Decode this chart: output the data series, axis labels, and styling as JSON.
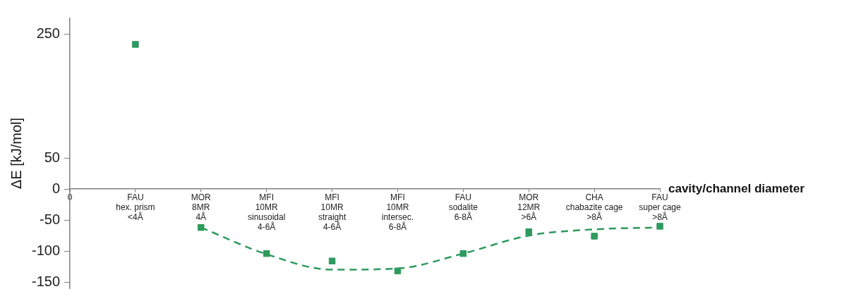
{
  "chart_data": {
    "type": "scatter",
    "ylabel": "ΔE [kJ/mol]",
    "xlabel": "cavity/channel diameter",
    "categories": [
      "0",
      "FAU\nhex. prism\n<4Å",
      "MOR\n8MR\n4Å",
      "MFI\n10MR\nsinusoidal\n4-6Å",
      "MFI\n10MR\nstraight\n4-6Å",
      "MFI\n10MR\nintersec.\n6-8Å",
      "FAU\nsodalite\n6-8Å",
      "MOR\n12MR\n>6Å",
      "CHA\nchabazite cage\n>8Å",
      "FAU\nsuper cage\n>8Å"
    ],
    "ylim": [
      -160,
      275
    ],
    "yticks": [
      250,
      50,
      0,
      -50,
      -100,
      -150
    ],
    "series": [
      {
        "color": "#2e9a5e",
        "marker": "square",
        "values": [
          null,
          233,
          -62,
          -104,
          -116,
          -132,
          -104,
          -69,
          -76,
          -60
        ]
      },
      {
        "type": "line",
        "color": "#2e9a5e",
        "line_style": "dashed",
        "marker": "none",
        "values": [
          null,
          null,
          -62,
          -105,
          -130,
          -128,
          -104,
          -75,
          -65,
          -62
        ]
      }
    ],
    "legend": false,
    "grid": false
  }
}
